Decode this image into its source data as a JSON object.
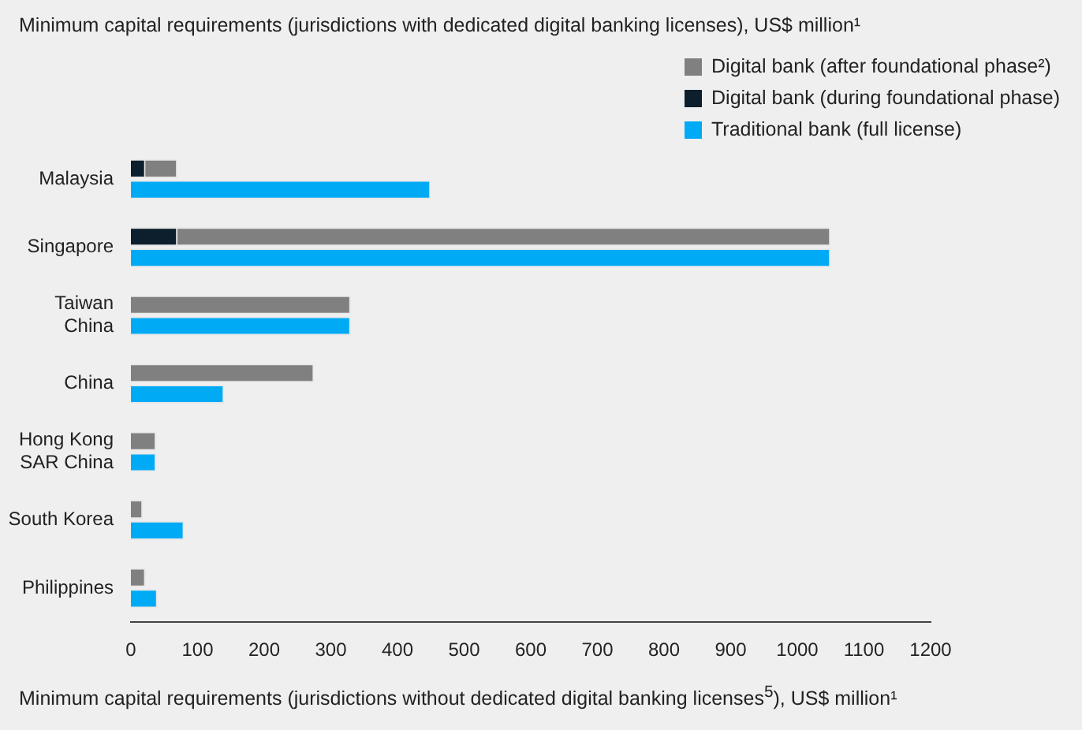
{
  "chart_data": {
    "type": "bar",
    "orientation": "horizontal",
    "title": "Minimum capital requirements (jurisdictions with dedicated digital banking licenses), US$ million¹",
    "xlabel": "Minimum capital requirements (jurisdictions without dedicated digital banking licenses$^{5}$), US$ million¹",
    "categories": [
      "Malaysia",
      "Singapore",
      "Taiwan\nChina",
      "China",
      "Hong Kong\nSAR China",
      "South Korea",
      "Philippines"
    ],
    "series": [
      {
        "name": "Digital bank (after foundational phase²)",
        "color": "#808080",
        "values": [
          70,
          1050,
          330,
          275,
          38,
          18,
          22
        ]
      },
      {
        "name": "Digital bank (during foundational phase)",
        "color": "#0d1f2d",
        "values": [
          22,
          70,
          null,
          null,
          null,
          null,
          null
        ]
      },
      {
        "name": "Traditional bank (full license)",
        "color": "#00aaf5",
        "values": [
          450,
          1050,
          330,
          140,
          38,
          80,
          40
        ]
      }
    ],
    "xlim": [
      0,
      1200
    ],
    "xticks": [
      0,
      100,
      200,
      300,
      400,
      500,
      600,
      700,
      800,
      900,
      1000,
      1100,
      1200
    ],
    "grid": false,
    "legend": "top right"
  }
}
